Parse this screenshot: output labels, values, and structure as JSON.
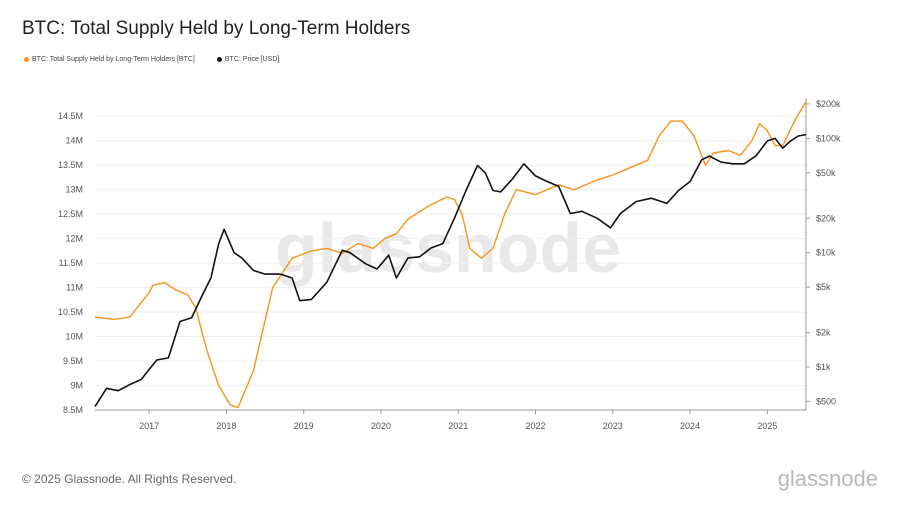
{
  "title": "BTC: Total Supply Held by Long-Term Holders",
  "legend": [
    {
      "label": "BTC: Total Supply Held by Long-Term Holders [BTC]",
      "color": "#f7931a"
    },
    {
      "label": "BTC: Price [USD]",
      "color": "#111111"
    }
  ],
  "footer": "© 2025 Glassnode. All Rights Reserved.",
  "brand": "glassnode",
  "watermark": "glassnode",
  "chart_data": {
    "type": "line",
    "xlabel": "",
    "ylabel": "",
    "xlim": [
      2016.3,
      2025.5
    ],
    "x_ticks": [
      {
        "label": "2017",
        "value": 2017.0
      },
      {
        "label": "2018",
        "value": 2018.0
      },
      {
        "label": "2019",
        "value": 2019.0
      },
      {
        "label": "2020",
        "value": 2020.0
      },
      {
        "label": "2021",
        "value": 2021.0
      },
      {
        "label": "2022",
        "value": 2022.0
      },
      {
        "label": "2023",
        "value": 2023.0
      },
      {
        "label": "2024",
        "value": 2024.0
      },
      {
        "label": "2025",
        "value": 2025.0
      }
    ],
    "left_axis": {
      "scale": "linear",
      "range": [
        8500000,
        14750000
      ],
      "ticks": [
        {
          "label": "8.5M",
          "value": 8500000
        },
        {
          "label": "9M",
          "value": 9000000
        },
        {
          "label": "9.5M",
          "value": 9500000
        },
        {
          "label": "10M",
          "value": 10000000
        },
        {
          "label": "10.5M",
          "value": 10500000
        },
        {
          "label": "11M",
          "value": 11000000
        },
        {
          "label": "11.5M",
          "value": 11500000
        },
        {
          "label": "12M",
          "value": 12000000
        },
        {
          "label": "12.5M",
          "value": 12500000
        },
        {
          "label": "13M",
          "value": 13000000
        },
        {
          "label": "13.5M",
          "value": 13500000
        },
        {
          "label": "14M",
          "value": 14000000
        },
        {
          "label": "14.5M",
          "value": 14500000
        }
      ]
    },
    "right_axis": {
      "scale": "log",
      "range": [
        420,
        200000
      ],
      "ticks": [
        {
          "label": "$500",
          "value": 500
        },
        {
          "label": "$1k",
          "value": 1000
        },
        {
          "label": "$2k",
          "value": 2000
        },
        {
          "label": "$5k",
          "value": 5000
        },
        {
          "label": "$10k",
          "value": 10000
        },
        {
          "label": "$20k",
          "value": 20000
        },
        {
          "label": "$50k",
          "value": 50000
        },
        {
          "label": "$100k",
          "value": 100000
        },
        {
          "label": "$200k",
          "value": 200000
        }
      ]
    },
    "grid": true,
    "legend_position": "top-left",
    "series": [
      {
        "name": "BTC: Total Supply Held by Long-Term Holders [BTC]",
        "axis": "left",
        "color": "#f7931a",
        "x": [
          2016.3,
          2016.55,
          2016.75,
          2016.9,
          2017.0,
          2017.05,
          2017.2,
          2017.35,
          2017.5,
          2017.6,
          2017.75,
          2017.9,
          2018.05,
          2018.15,
          2018.35,
          2018.6,
          2018.85,
          2019.1,
          2019.3,
          2019.5,
          2019.7,
          2019.9,
          2020.05,
          2020.2,
          2020.35,
          2020.6,
          2020.85,
          2020.95,
          2021.05,
          2021.15,
          2021.3,
          2021.45,
          2021.6,
          2021.75,
          2022.0,
          2022.3,
          2022.5,
          2022.8,
          2023.0,
          2023.3,
          2023.45,
          2023.6,
          2023.75,
          2023.9,
          2024.05,
          2024.2,
          2024.3,
          2024.5,
          2024.65,
          2024.8,
          2024.9,
          2025.0,
          2025.1,
          2025.2,
          2025.35,
          2025.5
        ],
        "y": [
          10400000,
          10350000,
          10400000,
          10700000,
          10900000,
          11050000,
          11100000,
          10950000,
          10850000,
          10600000,
          9700000,
          9000000,
          8600000,
          8550000,
          9300000,
          11000000,
          11600000,
          11750000,
          11800000,
          11700000,
          11900000,
          11800000,
          12000000,
          12100000,
          12400000,
          12650000,
          12850000,
          12800000,
          12500000,
          11800000,
          11600000,
          11800000,
          12500000,
          13000000,
          12900000,
          13100000,
          13000000,
          13200000,
          13300000,
          13500000,
          13600000,
          14100000,
          14400000,
          14400000,
          14100000,
          13500000,
          13750000,
          13800000,
          13700000,
          14000000,
          14350000,
          14200000,
          13900000,
          13900000,
          14400000,
          14800000
        ]
      },
      {
        "name": "BTC: Price [USD]",
        "axis": "right",
        "color": "#111111",
        "x": [
          2016.3,
          2016.45,
          2016.6,
          2016.75,
          2016.9,
          2017.0,
          2017.1,
          2017.25,
          2017.4,
          2017.55,
          2017.7,
          2017.8,
          2017.9,
          2017.97,
          2018.1,
          2018.2,
          2018.35,
          2018.5,
          2018.7,
          2018.85,
          2018.95,
          2019.1,
          2019.3,
          2019.5,
          2019.6,
          2019.8,
          2019.95,
          2020.1,
          2020.2,
          2020.35,
          2020.5,
          2020.65,
          2020.8,
          2020.95,
          2021.1,
          2021.25,
          2021.35,
          2021.45,
          2021.55,
          2021.7,
          2021.85,
          2022.0,
          2022.15,
          2022.3,
          2022.45,
          2022.6,
          2022.8,
          2022.97,
          2023.1,
          2023.3,
          2023.5,
          2023.7,
          2023.85,
          2024.0,
          2024.15,
          2024.25,
          2024.4,
          2024.55,
          2024.7,
          2024.85,
          2025.0,
          2025.1,
          2025.2,
          2025.3,
          2025.4,
          2025.5
        ],
        "y": [
          450,
          650,
          620,
          700,
          780,
          950,
          1150,
          1200,
          2500,
          2700,
          4400,
          6000,
          12000,
          16000,
          10000,
          9000,
          7000,
          6500,
          6500,
          6000,
          3800,
          3900,
          5500,
          10500,
          10000,
          8000,
          7200,
          9500,
          6000,
          9000,
          9200,
          11000,
          12000,
          20000,
          35000,
          58000,
          50000,
          35000,
          34000,
          44000,
          60000,
          47000,
          42000,
          38000,
          22000,
          23000,
          20000,
          16500,
          22000,
          28000,
          30000,
          27000,
          35000,
          42000,
          65000,
          70000,
          62000,
          60000,
          60000,
          70000,
          95000,
          100000,
          82000,
          95000,
          105000,
          108000
        ]
      }
    ]
  }
}
